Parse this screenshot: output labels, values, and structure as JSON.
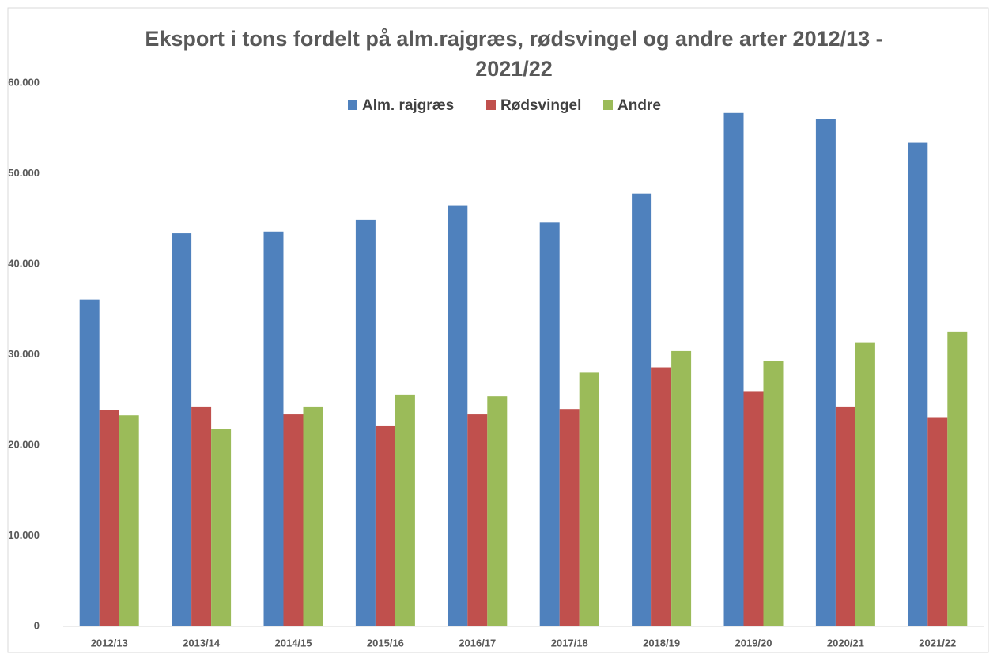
{
  "chart_data": {
    "type": "bar",
    "title": "Eksport i tons fordelt på alm.rajgræs, rødsvingel og andre arter 2012/13 - 2021/22",
    "categories": [
      "2012/13",
      "2013/14",
      "2014/15",
      "2015/16",
      "2016/17",
      "2017/18",
      "2018/19",
      "2019/20",
      "2020/21",
      "2021/22"
    ],
    "series": [
      {
        "name": "Alm. rajgræs",
        "color": "#4f81bd",
        "values": [
          36100,
          43400,
          43600,
          44900,
          46500,
          44600,
          47800,
          56700,
          56000,
          53400
        ]
      },
      {
        "name": "Rødsvingel",
        "color": "#c0504d",
        "values": [
          23900,
          24200,
          23400,
          22100,
          23400,
          24000,
          28600,
          25900,
          24200,
          23100
        ]
      },
      {
        "name": "Andre",
        "color": "#9bbb59",
        "values": [
          23300,
          21800,
          24200,
          25600,
          25400,
          28000,
          30400,
          29300,
          31300,
          32500
        ]
      }
    ],
    "ylim": [
      0,
      60000
    ],
    "yticks": [
      0,
      {
        "value": 10000,
        "label": "10.000"
      },
      {
        "value": 20000,
        "label": "20.000"
      },
      {
        "value": 30000,
        "label": "30.000"
      },
      {
        "value": 40000,
        "label": "40.000"
      },
      {
        "value": 50000,
        "label": "50.000"
      },
      {
        "value": 60000,
        "label": "60.000"
      }
    ],
    "legend": "top",
    "grid": false
  }
}
